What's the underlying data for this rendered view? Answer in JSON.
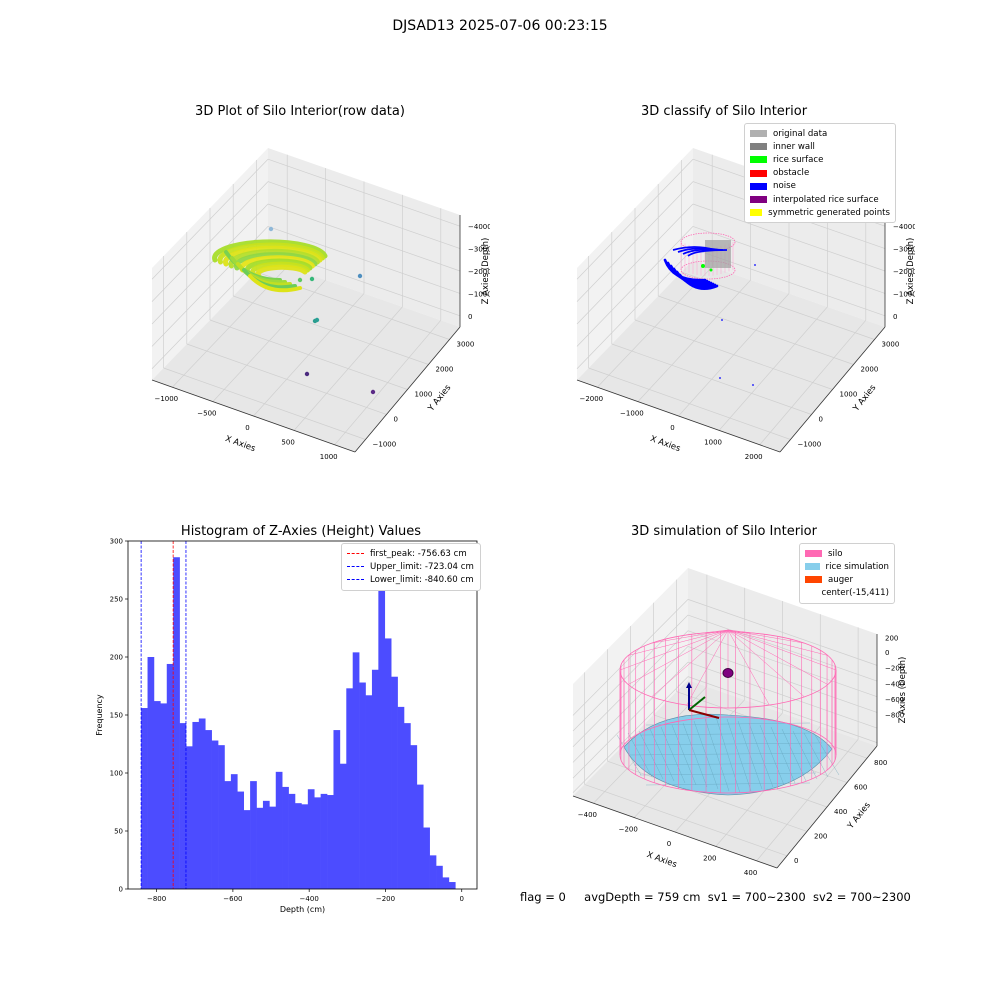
{
  "suptitle": "DJSAD13 2025-07-06 00:23:15",
  "status": {
    "flag": "flag = 0",
    "avg_depth": "avgDepth = 759 cm",
    "sv1": "sv1 = 700~2300",
    "sv2": "sv2 = 700~2300"
  },
  "colors": {
    "histogram_bar": "#4c4cff",
    "peak_line": "#ff0000",
    "limit_line": "#0000ff",
    "silo": "#ff69b4",
    "rice_simulation": "#87ceeb",
    "auger": "#ff4500",
    "original_data": "#b0b0b0",
    "inner_wall": "#808080",
    "rice_surface": "#00ff00",
    "obstacle": "#ff0000",
    "noise": "#0000ff",
    "interpolated_rice_surface": "#800080",
    "symmetric_generated_points": "#ffff00"
  },
  "chart_data": [
    {
      "type": "scatter",
      "projection": "3d",
      "title": "3D Plot of Silo Interior(row data)",
      "xlabel": "X Axies",
      "ylabel": "Y Axies",
      "zlabel": "Z Axies (Depth)",
      "x_ticks": [
        "−1000",
        "−500",
        "0",
        "500",
        "1000"
      ],
      "y_ticks": [
        "−1000",
        "0",
        "1000",
        "2000",
        "3000"
      ],
      "z_ticks": [
        "0",
        "−1000",
        "−2000",
        "−3000",
        "−4000"
      ],
      "grid": true
    },
    {
      "type": "scatter",
      "projection": "3d",
      "title": "3D classify of Silo Interior",
      "xlabel": "X Axies",
      "ylabel": "Y Axies",
      "zlabel": "Z Axies (Depth)",
      "x_ticks": [
        "−2000",
        "−1000",
        "0",
        "1000",
        "2000"
      ],
      "y_ticks": [
        "−1000",
        "0",
        "1000",
        "2000",
        "3000"
      ],
      "z_ticks": [
        "0",
        "−1000",
        "−2000",
        "−3000",
        "−4000"
      ],
      "legend_position": "top-right",
      "legend": [
        "original data",
        "inner wall",
        "rice surface",
        "obstacle",
        "noise",
        "interpolated rice surface",
        "symmetric generated points"
      ],
      "grid": true
    },
    {
      "type": "bar",
      "title": "Histogram of Z-Axies (Height) Values",
      "xlabel": "Depth (cm)",
      "ylabel": "Frequency",
      "xlim": [
        -875,
        40
      ],
      "ylim": [
        0,
        300
      ],
      "x_ticks": [
        -800,
        -600,
        -400,
        -200,
        0
      ],
      "x_tick_labels": [
        "−800",
        "−600",
        "−400",
        "−200",
        "0"
      ],
      "y_ticks": [
        0,
        50,
        100,
        150,
        200,
        250,
        300
      ],
      "bin_start": -840.6,
      "bin_width": 16.81,
      "values": [
        156,
        200,
        162,
        160,
        194,
        286,
        143,
        123,
        144,
        147,
        137,
        128,
        124,
        93,
        99,
        84,
        68,
        93,
        70,
        76,
        71,
        101,
        88,
        82,
        74,
        73,
        86,
        79,
        82,
        81,
        137,
        108,
        173,
        204,
        178,
        167,
        189,
        259,
        216,
        183,
        157,
        143,
        124,
        90,
        53,
        29,
        20,
        10,
        6
      ],
      "lines": [
        {
          "x": -756.63,
          "label": "first_peak: -756.63 cm",
          "style": "peak"
        },
        {
          "x": -723.04,
          "label": "Upper_limit: -723.04 cm",
          "style": "limit"
        },
        {
          "x": -840.6,
          "label": "Lower_limit: -840.60 cm",
          "style": "limit"
        }
      ],
      "legend_position": "top-right"
    },
    {
      "type": "scatter",
      "projection": "3d",
      "title": "3D simulation of Silo Interior",
      "xlabel": "X Axies",
      "ylabel": "Y Axies",
      "zlabel": "Z Axies (Depth)",
      "x_ticks": [
        "−400",
        "−200",
        "0",
        "200",
        "400"
      ],
      "y_ticks": [
        "0",
        "200",
        "400",
        "600",
        "800"
      ],
      "z_ticks": [
        "200",
        "0",
        "−200",
        "−400",
        "−600",
        "−800"
      ],
      "legend_position": "top-right",
      "legend": [
        "silo",
        "rice simulation",
        "auger",
        "center(-15,411)"
      ],
      "grid": true
    }
  ]
}
